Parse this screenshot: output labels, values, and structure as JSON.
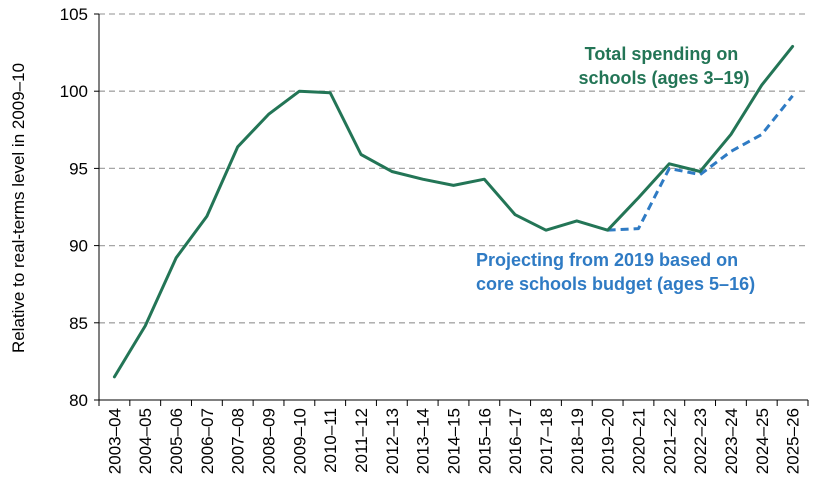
{
  "chart_data": {
    "type": "line",
    "ylabel": "Relative to real-terms level in 2009–10",
    "ylim": [
      80,
      105
    ],
    "yticks": [
      "80",
      "85",
      "90",
      "95",
      "100",
      "105"
    ],
    "grid": "horizontal dashed",
    "categories": [
      "2003–04",
      "2004–05",
      "2005–06",
      "2006–07",
      "2007–08",
      "2008–09",
      "2009–10",
      "2010–11",
      "2011–12",
      "2012–13",
      "2013–14",
      "2014–15",
      "2015–16",
      "2016–17",
      "2017–18",
      "2018–19",
      "2019–20",
      "2020–21",
      "2021–22",
      "2022–23",
      "2023–24",
      "2024–25",
      "2025–26"
    ],
    "series": [
      {
        "name": "Total spending on schools (ages 3–19)",
        "color": "#237556",
        "style": "solid",
        "values": [
          81.5,
          84.8,
          89.2,
          91.9,
          96.4,
          98.5,
          100.0,
          99.9,
          95.9,
          94.8,
          94.3,
          93.9,
          94.3,
          92.0,
          91.0,
          91.6,
          91.0,
          93.1,
          95.3,
          94.8,
          97.2,
          100.4,
          102.9
        ]
      },
      {
        "name": "Projecting from 2019 based on core schools budget (ages 5–16)",
        "color": "#2F7BC4",
        "style": "dashed",
        "values": [
          null,
          null,
          null,
          null,
          null,
          null,
          null,
          null,
          null,
          null,
          null,
          null,
          null,
          null,
          null,
          null,
          91.0,
          91.1,
          95.0,
          94.6,
          96.1,
          97.2,
          99.7
        ]
      }
    ],
    "annotations": [
      {
        "lines": [
          "Total spending on",
          "schools (ages 3–19)"
        ],
        "color": "#237556"
      },
      {
        "lines": [
          "Projecting from 2019 based on",
          "core schools budget (ages 5–16)"
        ],
        "color": "#2F7BC4"
      }
    ]
  }
}
